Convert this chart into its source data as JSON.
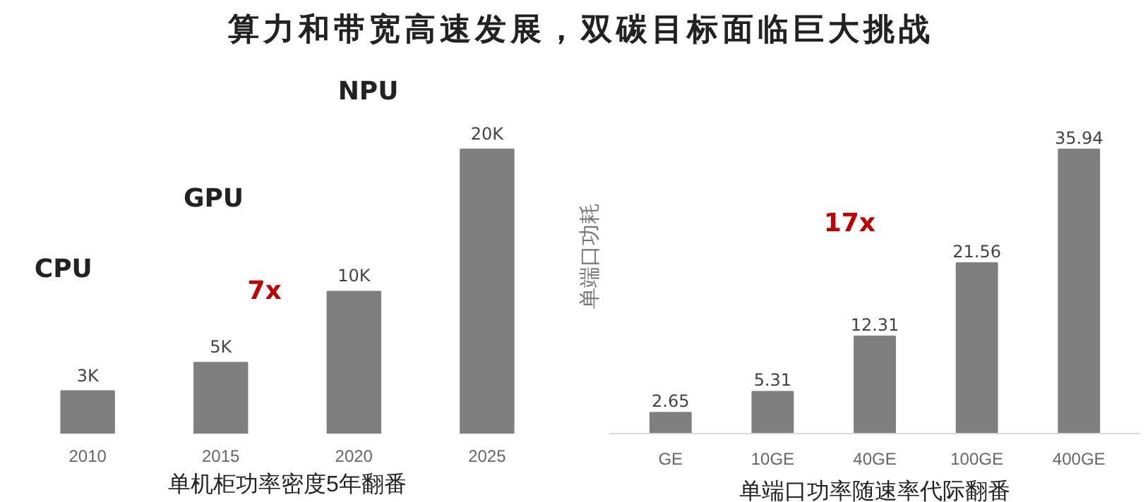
{
  "chart_data": [
    {
      "type": "bar",
      "title": "算力和带宽高速发展，双碳目标面临巨大挑战",
      "xlabel": "单机柜功率密度5年翻番",
      "categories": [
        "2010",
        "2015",
        "2020",
        "2025"
      ],
      "values": [
        3000,
        5000,
        10000,
        20000
      ],
      "value_labels": [
        "3K",
        "5K",
        "10K",
        "20K"
      ],
      "color": "#7f7f7f",
      "annotations": [
        "CPU",
        "GPU",
        "NPU",
        "7x"
      ],
      "grid": false
    },
    {
      "type": "bar",
      "xlabel": "单端口功率随速率代际翻番",
      "ylabel": "单端口功耗",
      "categories": [
        "GE",
        "10GE",
        "40GE",
        "100GE",
        "400GE"
      ],
      "values": [
        2.65,
        5.31,
        12.31,
        21.56,
        35.94
      ],
      "data_labels": true,
      "color": "#7f7f7f",
      "annotations": [
        "17x"
      ],
      "grid": false
    }
  ]
}
